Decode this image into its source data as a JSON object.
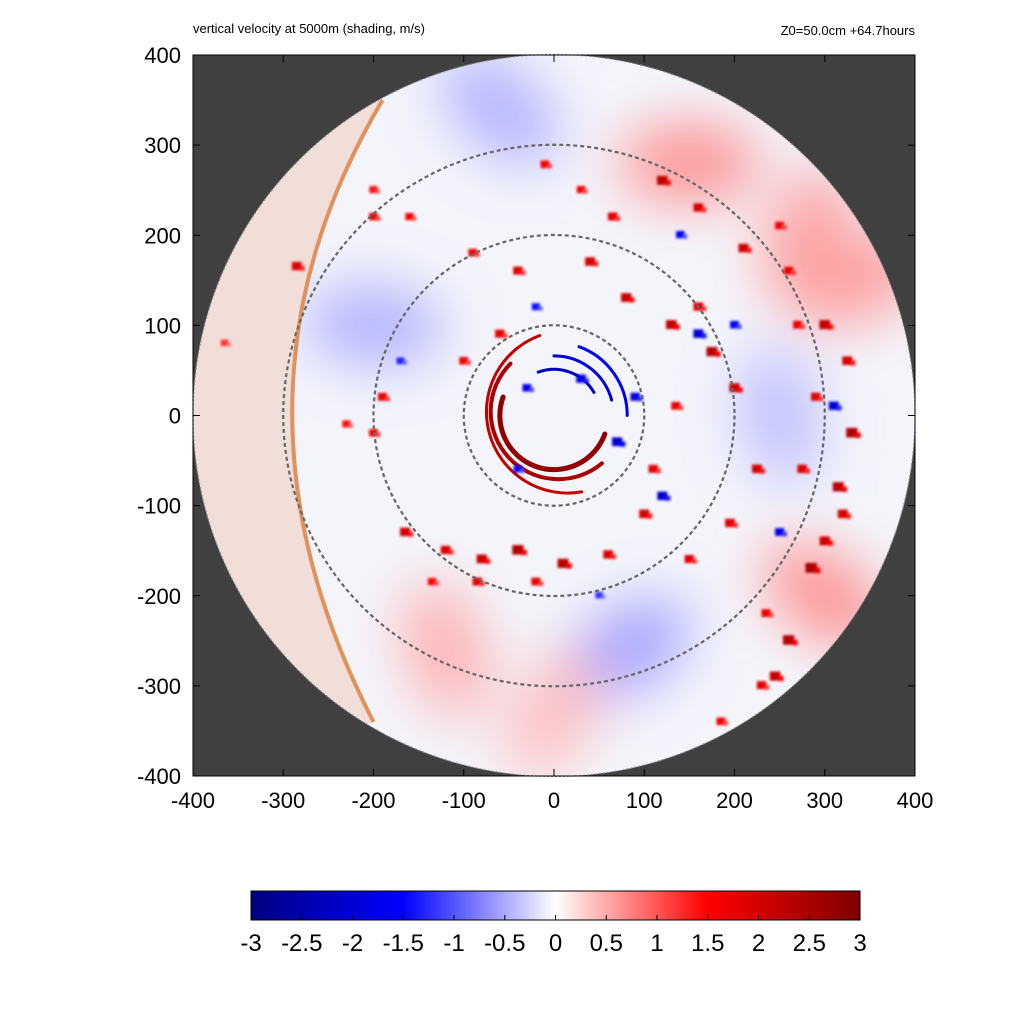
{
  "chart_data": {
    "type": "heatmap",
    "title": "vertical velocity at 5000m (shading, m/s)",
    "annotation": "Z0=50.0cm  +64.7hours",
    "x_range": [
      -400,
      400
    ],
    "y_range": [
      -400,
      400
    ],
    "x_ticks": [
      "-400",
      "-300",
      "-200",
      "-100",
      "0",
      "100",
      "200",
      "300",
      "400"
    ],
    "y_ticks": [
      "400",
      "300",
      "200",
      "100",
      "0",
      "-100",
      "-200",
      "-300",
      "-400"
    ],
    "domain_radius": 400,
    "reference_circle_radii": [
      100,
      200,
      300
    ],
    "colorbar": {
      "min": -3,
      "max": 3,
      "ticks": [
        "-3",
        "-2.5",
        "-2",
        "-1.5",
        "-1",
        "-0.5",
        "0",
        "0.5",
        "1",
        "1.5",
        "2",
        "2.5",
        "3"
      ],
      "colors": [
        "#00007f",
        "#0000ff",
        "#ffffff",
        "#ff0000",
        "#7f0000"
      ]
    },
    "colors": {
      "outside_domain": "#404040",
      "domain_background": "#f4f5fb",
      "shore_line": "#e0925a",
      "land_shade": "#f1ded8",
      "reference_circles": "#666666"
    },
    "features": {
      "eye_arc_radii_km": [
        60,
        75,
        90
      ],
      "updraft_cells": [
        {
          "x": -10,
          "y": 278,
          "w": 1.6
        },
        {
          "x": 30,
          "y": 250,
          "w": 1.5
        },
        {
          "x": 65,
          "y": 220,
          "w": 1.8
        },
        {
          "x": 120,
          "y": 260,
          "w": 2.2
        },
        {
          "x": 160,
          "y": 230,
          "w": 1.9
        },
        {
          "x": 210,
          "y": 185,
          "w": 2.0
        },
        {
          "x": 260,
          "y": 160,
          "w": 1.7
        },
        {
          "x": 300,
          "y": 100,
          "w": 2.2
        },
        {
          "x": 325,
          "y": 60,
          "w": 2.0
        },
        {
          "x": 330,
          "y": -20,
          "w": 2.4
        },
        {
          "x": 315,
          "y": -80,
          "w": 2.3
        },
        {
          "x": 300,
          "y": -140,
          "w": 2.1
        },
        {
          "x": 285,
          "y": -170,
          "w": 2.5
        },
        {
          "x": 260,
          "y": -250,
          "w": 2.4
        },
        {
          "x": 245,
          "y": -290,
          "w": 2.2
        },
        {
          "x": 230,
          "y": -300,
          "w": 1.8
        },
        {
          "x": 185,
          "y": -340,
          "w": 1.6
        },
        {
          "x": 175,
          "y": 70,
          "w": 2.3
        },
        {
          "x": 200,
          "y": 30,
          "w": 2.1
        },
        {
          "x": 225,
          "y": -60,
          "w": 2.0
        },
        {
          "x": 195,
          "y": -120,
          "w": 1.9
        },
        {
          "x": 150,
          "y": -160,
          "w": 1.8
        },
        {
          "x": 100,
          "y": -110,
          "w": 2.0
        },
        {
          "x": 60,
          "y": -155,
          "w": 1.9
        },
        {
          "x": 10,
          "y": -165,
          "w": 2.3
        },
        {
          "x": -40,
          "y": -150,
          "w": 2.4
        },
        {
          "x": -80,
          "y": -160,
          "w": 2.1
        },
        {
          "x": -120,
          "y": -150,
          "w": 1.9
        },
        {
          "x": -165,
          "y": -130,
          "w": 2.0
        },
        {
          "x": -85,
          "y": -185,
          "w": 1.8
        },
        {
          "x": -20,
          "y": -185,
          "w": 1.7
        },
        {
          "x": 40,
          "y": 170,
          "w": 2.0
        },
        {
          "x": -40,
          "y": 160,
          "w": 1.8
        },
        {
          "x": -90,
          "y": 180,
          "w": 1.6
        },
        {
          "x": 80,
          "y": 130,
          "w": 2.1
        },
        {
          "x": 130,
          "y": 100,
          "w": 2.2
        },
        {
          "x": 160,
          "y": 120,
          "w": 1.9
        },
        {
          "x": -60,
          "y": 90,
          "w": 1.8
        },
        {
          "x": -100,
          "y": 60,
          "w": 1.6
        },
        {
          "x": -190,
          "y": 20,
          "w": 1.7
        },
        {
          "x": -200,
          "y": -20,
          "w": 1.6
        },
        {
          "x": -230,
          "y": -10,
          "w": 1.4
        },
        {
          "x": -160,
          "y": 220,
          "w": 1.5
        },
        {
          "x": -200,
          "y": 220,
          "w": 1.6
        },
        {
          "x": -285,
          "y": 165,
          "w": 1.9
        },
        {
          "x": -200,
          "y": 250,
          "w": 1.4
        },
        {
          "x": 250,
          "y": 210,
          "w": 1.6
        },
        {
          "x": 270,
          "y": 100,
          "w": 1.7
        },
        {
          "x": 290,
          "y": 20,
          "w": 1.8
        },
        {
          "x": 275,
          "y": -60,
          "w": 1.9
        },
        {
          "x": 320,
          "y": -110,
          "w": 2.0
        },
        {
          "x": 235,
          "y": -220,
          "w": 1.7
        },
        {
          "x": -135,
          "y": -185,
          "w": 1.5
        },
        {
          "x": 110,
          "y": -60,
          "w": 1.8
        },
        {
          "x": 135,
          "y": 10,
          "w": 1.7
        },
        {
          "x": -365,
          "y": 80,
          "w": 1.2
        }
      ],
      "downdraft_cells": [
        {
          "x": 30,
          "y": 40,
          "w": -1.9
        },
        {
          "x": 70,
          "y": -30,
          "w": -2.1
        },
        {
          "x": 90,
          "y": 20,
          "w": -1.8
        },
        {
          "x": -30,
          "y": 30,
          "w": -1.6
        },
        {
          "x": 160,
          "y": 90,
          "w": -2.0
        },
        {
          "x": 310,
          "y": 10,
          "w": -1.9
        },
        {
          "x": 250,
          "y": -130,
          "w": -1.7
        },
        {
          "x": 120,
          "y": -90,
          "w": -2.0
        },
        {
          "x": -40,
          "y": -60,
          "w": -1.5
        },
        {
          "x": 200,
          "y": 100,
          "w": -1.6
        },
        {
          "x": -20,
          "y": 120,
          "w": -1.4
        },
        {
          "x": 140,
          "y": 200,
          "w": -1.5
        },
        {
          "x": 50,
          "y": -200,
          "w": -1.2
        },
        {
          "x": -170,
          "y": 60,
          "w": -1.3
        }
      ],
      "broad_bands": [
        {
          "x": 150,
          "y": 280,
          "w": 0.35
        },
        {
          "x": 300,
          "y": -200,
          "w": 0.35
        },
        {
          "x": -120,
          "y": -260,
          "w": 0.25
        },
        {
          "x": 280,
          "y": 200,
          "w": 0.3
        },
        {
          "x": 80,
          "y": -260,
          "w": -0.3
        },
        {
          "x": -200,
          "y": 100,
          "w": -0.25
        },
        {
          "x": -60,
          "y": 340,
          "w": -0.25
        },
        {
          "x": 250,
          "y": 0,
          "w": -0.2
        },
        {
          "x": 0,
          "y": -330,
          "w": 0.2
        },
        {
          "x": 340,
          "y": 150,
          "w": 0.3
        }
      ]
    }
  }
}
